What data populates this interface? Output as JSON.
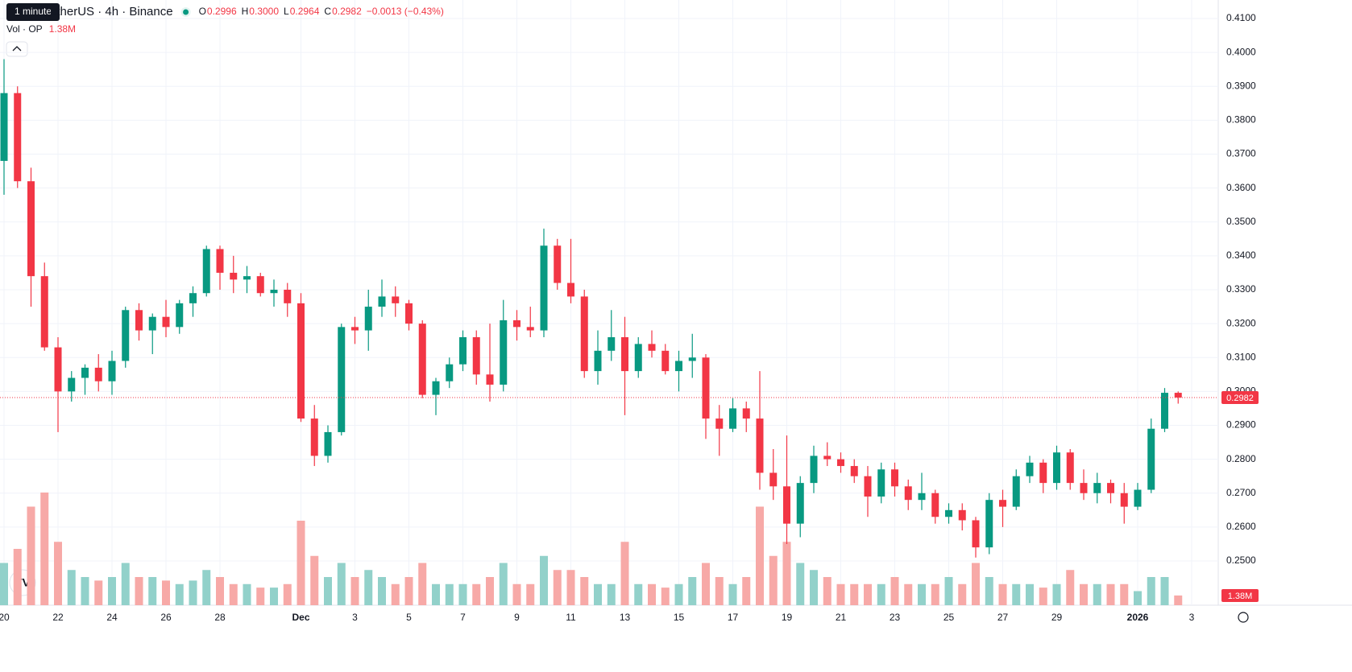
{
  "chart_data": {
    "type": "candlestick",
    "title": "etherUS · 4h · Binance",
    "tooltip": "1 minute",
    "legend_values": [
      {
        "label": "O",
        "value": "0.2996"
      },
      {
        "label": "H",
        "value": "0.3000"
      },
      {
        "label": "L",
        "value": "0.2964"
      },
      {
        "label": "C",
        "value": "0.2982"
      }
    ],
    "change": "−0.0013 (−0.43%)",
    "volume_title": "Vol · OP",
    "volume_last": "1.38M",
    "up_color": "#089981",
    "down_color": "#f23645",
    "volume_up_color": "#92d1ca",
    "volume_down_color": "#f7a9a7",
    "grid": true,
    "categories": [
      "20",
      null,
      null,
      null,
      "22",
      null,
      null,
      null,
      "24",
      null,
      null,
      null,
      "26",
      null,
      null,
      null,
      "28",
      null,
      null,
      null,
      null,
      null,
      "Dec",
      null,
      null,
      null,
      "3",
      null,
      null,
      null,
      "5",
      null,
      null,
      null,
      "7",
      null,
      null,
      null,
      "9",
      null,
      null,
      null,
      "11",
      null,
      null,
      null,
      "13",
      null,
      null,
      null,
      "15",
      null,
      null,
      null,
      "17",
      null,
      null,
      null,
      "19",
      null,
      null,
      null,
      "21",
      null,
      null,
      null,
      "23",
      null,
      null,
      null,
      "25",
      null,
      null,
      null,
      "27",
      null,
      null,
      null,
      "29",
      null,
      null,
      null,
      null,
      null,
      "2026",
      null,
      null,
      null,
      "3"
    ],
    "open": [
      0.368,
      0.388,
      0.362,
      0.334,
      0.313,
      0.3,
      0.304,
      0.307,
      0.303,
      0.309,
      0.324,
      0.318,
      0.322,
      0.319,
      0.326,
      0.329,
      0.342,
      0.335,
      0.333,
      0.334,
      0.329,
      0.33,
      0.326,
      0.292,
      0.281,
      0.288,
      0.319,
      0.318,
      0.325,
      0.328,
      0.326,
      0.32,
      0.299,
      0.303,
      0.308,
      0.316,
      0.305,
      0.302,
      0.321,
      0.319,
      0.318,
      0.343,
      0.332,
      0.328,
      0.306,
      0.312,
      0.316,
      0.306,
      0.314,
      0.312,
      0.306,
      0.309,
      0.31,
      0.292,
      0.289,
      0.295,
      0.292,
      0.276,
      0.272,
      0.261,
      0.273,
      0.281,
      0.28,
      0.278,
      0.275,
      0.269,
      0.277,
      0.272,
      0.268,
      0.27,
      0.263,
      0.265,
      0.262,
      0.254,
      0.268,
      0.266,
      0.275,
      0.279,
      0.273,
      0.282,
      0.273,
      0.27,
      0.273,
      0.27,
      0.266,
      0.271,
      0.289,
      0.2996,
      null
    ],
    "high": [
      0.398,
      0.39,
      0.366,
      0.338,
      0.316,
      0.306,
      0.308,
      0.311,
      0.312,
      0.325,
      0.326,
      0.323,
      0.327,
      0.327,
      0.331,
      0.343,
      0.343,
      0.34,
      0.337,
      0.335,
      0.333,
      0.332,
      0.329,
      0.296,
      0.29,
      0.32,
      0.322,
      0.33,
      0.333,
      0.331,
      0.327,
      0.321,
      0.304,
      0.31,
      0.318,
      0.318,
      0.32,
      0.327,
      0.324,
      0.325,
      0.348,
      0.345,
      0.345,
      0.33,
      0.318,
      0.324,
      0.322,
      0.316,
      0.318,
      0.314,
      0.312,
      0.317,
      0.311,
      0.296,
      0.298,
      0.297,
      0.306,
      0.283,
      0.287,
      0.275,
      0.284,
      0.285,
      0.282,
      0.28,
      0.278,
      0.279,
      0.279,
      0.274,
      0.276,
      0.271,
      0.267,
      0.267,
      0.263,
      0.27,
      0.271,
      0.277,
      0.281,
      0.28,
      0.284,
      0.283,
      0.277,
      0.276,
      0.274,
      0.273,
      0.273,
      0.292,
      0.301,
      0.3,
      null
    ],
    "low": [
      0.358,
      0.36,
      0.325,
      0.312,
      0.288,
      0.297,
      0.299,
      0.3,
      0.299,
      0.307,
      0.315,
      0.311,
      0.316,
      0.317,
      0.322,
      0.328,
      0.33,
      0.329,
      0.329,
      0.328,
      0.325,
      0.322,
      0.291,
      0.278,
      0.279,
      0.287,
      0.314,
      0.312,
      0.322,
      0.322,
      0.318,
      0.298,
      0.293,
      0.301,
      0.306,
      0.302,
      0.297,
      0.3,
      0.315,
      0.316,
      0.316,
      0.33,
      0.326,
      0.304,
      0.302,
      0.309,
      0.293,
      0.304,
      0.31,
      0.305,
      0.3,
      0.304,
      0.286,
      0.281,
      0.288,
      0.288,
      0.271,
      0.268,
      0.255,
      0.257,
      0.27,
      0.278,
      0.276,
      0.273,
      0.263,
      0.267,
      0.269,
      0.265,
      0.265,
      0.261,
      0.261,
      0.259,
      0.251,
      0.252,
      0.26,
      0.265,
      0.273,
      0.27,
      0.271,
      0.271,
      0.268,
      0.267,
      0.267,
      0.261,
      0.265,
      0.27,
      0.288,
      0.2964,
      null
    ],
    "close": [
      0.388,
      0.362,
      0.334,
      0.313,
      0.3,
      0.304,
      0.307,
      0.303,
      0.309,
      0.324,
      0.318,
      0.322,
      0.319,
      0.326,
      0.329,
      0.342,
      0.335,
      0.333,
      0.334,
      0.329,
      0.33,
      0.326,
      0.292,
      0.281,
      0.288,
      0.319,
      0.318,
      0.325,
      0.328,
      0.326,
      0.32,
      0.299,
      0.303,
      0.308,
      0.316,
      0.305,
      0.302,
      0.321,
      0.319,
      0.318,
      0.343,
      0.332,
      0.328,
      0.306,
      0.312,
      0.316,
      0.306,
      0.314,
      0.312,
      0.306,
      0.309,
      0.31,
      0.292,
      0.289,
      0.295,
      0.292,
      0.276,
      0.272,
      0.261,
      0.273,
      0.281,
      0.28,
      0.278,
      0.275,
      0.269,
      0.277,
      0.272,
      0.268,
      0.27,
      0.263,
      0.265,
      0.262,
      0.254,
      0.268,
      0.266,
      0.275,
      0.279,
      0.273,
      0.282,
      0.273,
      0.27,
      0.273,
      0.27,
      0.266,
      0.271,
      0.289,
      0.2996,
      0.2982,
      null
    ],
    "volume": [
      6,
      8,
      14,
      16,
      9,
      5,
      4,
      3.5,
      4,
      6,
      4,
      4,
      3.5,
      3,
      3.5,
      5,
      4,
      3,
      3,
      2.5,
      2.5,
      3,
      12,
      7,
      4,
      6,
      4,
      5,
      4,
      3,
      4,
      6,
      3,
      3,
      3,
      3,
      4,
      6,
      3,
      3,
      7,
      5,
      5,
      4,
      3,
      3,
      9,
      3,
      3,
      2.5,
      3,
      4,
      6,
      4,
      3,
      4,
      14,
      7,
      9,
      6,
      5,
      4,
      3,
      3,
      3,
      3,
      4,
      3,
      3,
      3,
      4,
      3,
      6,
      4,
      3,
      3,
      3,
      2.5,
      3,
      5,
      3,
      3,
      3,
      3,
      2,
      4,
      4,
      1.38,
      null
    ],
    "ylim": [
      0.2415,
      0.4125
    ],
    "yticks": [
      {
        "value": 0.25,
        "label": "0.2500"
      },
      {
        "value": 0.26,
        "label": "0.2600"
      },
      {
        "value": 0.27,
        "label": "0.2700"
      },
      {
        "value": 0.28,
        "label": "0.2800"
      },
      {
        "value": 0.29,
        "label": "0.2900"
      },
      {
        "value": 0.3,
        "label": "0.3000"
      },
      {
        "value": 0.31,
        "label": "0.3100"
      },
      {
        "value": 0.32,
        "label": "0.3200"
      },
      {
        "value": 0.33,
        "label": "0.3300"
      },
      {
        "value": 0.34,
        "label": "0.3400"
      },
      {
        "value": 0.35,
        "label": "0.3500"
      },
      {
        "value": 0.36,
        "label": "0.3600"
      },
      {
        "value": 0.37,
        "label": "0.3700"
      },
      {
        "value": 0.38,
        "label": "0.3800"
      },
      {
        "value": 0.39,
        "label": "0.3900"
      },
      {
        "value": 0.4,
        "label": "0.4000"
      },
      {
        "value": 0.41,
        "label": "0.4100"
      }
    ],
    "volume_ylim": [
      0,
      24
    ]
  }
}
